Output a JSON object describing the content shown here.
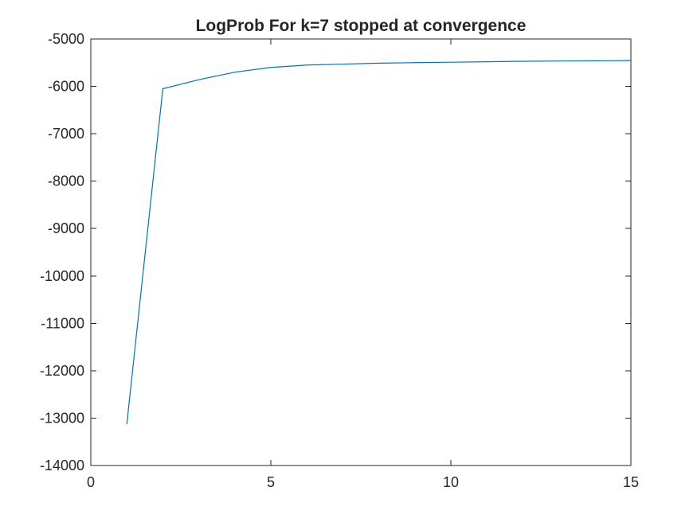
{
  "chart_data": {
    "type": "line",
    "title": "LogProb For k=7 stopped at convergence",
    "xlabel": "",
    "ylabel": "",
    "xlim": [
      0,
      15
    ],
    "ylim": [
      -14000,
      -5000
    ],
    "xticks": [
      0,
      5,
      10,
      15
    ],
    "xtick_labels": [
      "0",
      "5",
      "10",
      "15"
    ],
    "yticks": [
      -5000,
      -6000,
      -7000,
      -8000,
      -9000,
      -10000,
      -11000,
      -12000,
      -13000,
      -14000
    ],
    "ytick_labels": [
      "-5000",
      "-6000",
      "-7000",
      "-8000",
      "-9000",
      "-10000",
      "-11000",
      "-12000",
      "-13000",
      "-14000"
    ],
    "grid": false,
    "series": [
      {
        "color": "#0072bd",
        "x": [
          1,
          2,
          3,
          4,
          5,
          6,
          7,
          8,
          9,
          10,
          11,
          12,
          13,
          14,
          15
        ],
        "y": [
          -13130,
          -6050,
          -5860,
          -5700,
          -5600,
          -5550,
          -5530,
          -5510,
          -5500,
          -5490,
          -5480,
          -5470,
          -5465,
          -5460,
          -5455
        ]
      }
    ]
  }
}
